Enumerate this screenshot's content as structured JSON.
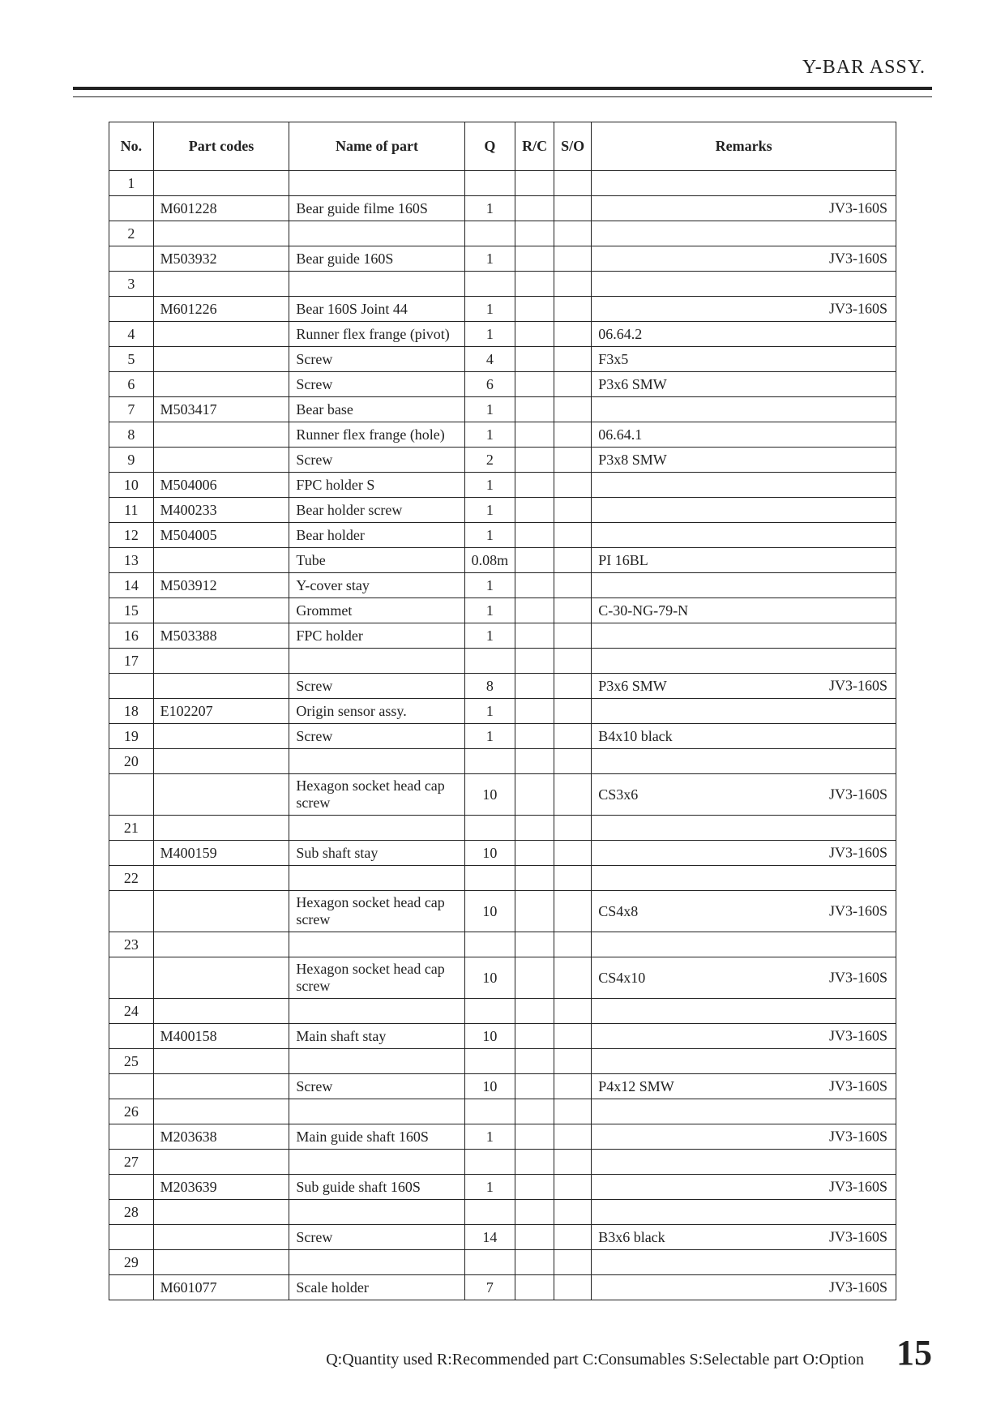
{
  "header": {
    "title": "Y-BAR  ASSY."
  },
  "columns": {
    "no": "No.",
    "code": "Part codes",
    "name": "Name of part",
    "q": "Q",
    "rc": "R/C",
    "so": "S/O",
    "remarks": "Remarks"
  },
  "rows": [
    {
      "no": "1",
      "code": "",
      "name": "",
      "q": "",
      "rc": "",
      "so": "",
      "rem_l": "",
      "rem_r": ""
    },
    {
      "no": "",
      "code": "M601228",
      "name": "Bear guide filme 160S",
      "q": "1",
      "rc": "",
      "so": "",
      "rem_l": "",
      "rem_r": "JV3-160S"
    },
    {
      "no": "2",
      "code": "",
      "name": "",
      "q": "",
      "rc": "",
      "so": "",
      "rem_l": "",
      "rem_r": ""
    },
    {
      "no": "",
      "code": "M503932",
      "name": "Bear guide 160S",
      "q": "1",
      "rc": "",
      "so": "",
      "rem_l": "",
      "rem_r": "JV3-160S"
    },
    {
      "no": "3",
      "code": "",
      "name": "",
      "q": "",
      "rc": "",
      "so": "",
      "rem_l": "",
      "rem_r": ""
    },
    {
      "no": "",
      "code": "M601226",
      "name": "Bear 160S Joint 44",
      "q": "1",
      "rc": "",
      "so": "",
      "rem_l": "",
      "rem_r": "JV3-160S"
    },
    {
      "no": "4",
      "code": "",
      "name": "Runner flex frange (pivot)",
      "q": "1",
      "rc": "",
      "so": "",
      "rem_l": "06.64.2",
      "rem_r": ""
    },
    {
      "no": "5",
      "code": "",
      "name": "Screw",
      "q": "4",
      "rc": "",
      "so": "",
      "rem_l": "F3x5",
      "rem_r": ""
    },
    {
      "no": "6",
      "code": "",
      "name": "Screw",
      "q": "6",
      "rc": "",
      "so": "",
      "rem_l": "P3x6 SMW",
      "rem_r": ""
    },
    {
      "no": "7",
      "code": "M503417",
      "name": "Bear base",
      "q": "1",
      "rc": "",
      "so": "",
      "rem_l": "",
      "rem_r": ""
    },
    {
      "no": "8",
      "code": "",
      "name": "Runner flex frange (hole)",
      "q": "1",
      "rc": "",
      "so": "",
      "rem_l": "06.64.1",
      "rem_r": ""
    },
    {
      "no": "9",
      "code": "",
      "name": "Screw",
      "q": "2",
      "rc": "",
      "so": "",
      "rem_l": "P3x8 SMW",
      "rem_r": ""
    },
    {
      "no": "10",
      "code": "M504006",
      "name": "FPC holder S",
      "q": "1",
      "rc": "",
      "so": "",
      "rem_l": "",
      "rem_r": ""
    },
    {
      "no": "11",
      "code": "M400233",
      "name": "Bear holder screw",
      "q": "1",
      "rc": "",
      "so": "",
      "rem_l": "",
      "rem_r": ""
    },
    {
      "no": "12",
      "code": "M504005",
      "name": "Bear holder",
      "q": "1",
      "rc": "",
      "so": "",
      "rem_l": "",
      "rem_r": ""
    },
    {
      "no": "13",
      "code": "",
      "name": "Tube",
      "q": "0.08m",
      "rc": "",
      "so": "",
      "rem_l": "PI 16BL",
      "rem_r": ""
    },
    {
      "no": "14",
      "code": "M503912",
      "name": "Y-cover stay",
      "q": "1",
      "rc": "",
      "so": "",
      "rem_l": "",
      "rem_r": ""
    },
    {
      "no": "15",
      "code": "",
      "name": "Grommet",
      "q": "1",
      "rc": "",
      "so": "",
      "rem_l": "C-30-NG-79-N",
      "rem_r": ""
    },
    {
      "no": "16",
      "code": "M503388",
      "name": "FPC holder",
      "q": "1",
      "rc": "",
      "so": "",
      "rem_l": "",
      "rem_r": ""
    },
    {
      "no": "17",
      "code": "",
      "name": "",
      "q": "",
      "rc": "",
      "so": "",
      "rem_l": "",
      "rem_r": ""
    },
    {
      "no": "",
      "code": "",
      "name": "Screw",
      "q": "8",
      "rc": "",
      "so": "",
      "rem_l": "P3x6 SMW",
      "rem_r": "JV3-160S"
    },
    {
      "no": "18",
      "code": "E102207",
      "name": "Origin sensor assy.",
      "q": "1",
      "rc": "",
      "so": "",
      "rem_l": "",
      "rem_r": ""
    },
    {
      "no": "19",
      "code": "",
      "name": "Screw",
      "q": "1",
      "rc": "",
      "so": "",
      "rem_l": "B4x10 black",
      "rem_r": ""
    },
    {
      "no": "20",
      "code": "",
      "name": "",
      "q": "",
      "rc": "",
      "so": "",
      "rem_l": "",
      "rem_r": ""
    },
    {
      "no": "",
      "code": "",
      "name": "Hexagon socket head cap screw",
      "q": "10",
      "rc": "",
      "so": "",
      "rem_l": "CS3x6",
      "rem_r": "JV3-160S"
    },
    {
      "no": "21",
      "code": "",
      "name": "",
      "q": "",
      "rc": "",
      "so": "",
      "rem_l": "",
      "rem_r": ""
    },
    {
      "no": "",
      "code": "M400159",
      "name": "Sub shaft stay",
      "q": "10",
      "rc": "",
      "so": "",
      "rem_l": "",
      "rem_r": "JV3-160S"
    },
    {
      "no": "22",
      "code": "",
      "name": "",
      "q": "",
      "rc": "",
      "so": "",
      "rem_l": "",
      "rem_r": ""
    },
    {
      "no": "",
      "code": "",
      "name": "Hexagon socket head cap screw",
      "q": "10",
      "rc": "",
      "so": "",
      "rem_l": "CS4x8",
      "rem_r": "JV3-160S"
    },
    {
      "no": "23",
      "code": "",
      "name": "",
      "q": "",
      "rc": "",
      "so": "",
      "rem_l": "",
      "rem_r": ""
    },
    {
      "no": "",
      "code": "",
      "name": "Hexagon socket head cap screw",
      "q": "10",
      "rc": "",
      "so": "",
      "rem_l": "CS4x10",
      "rem_r": "JV3-160S"
    },
    {
      "no": "24",
      "code": "",
      "name": "",
      "q": "",
      "rc": "",
      "so": "",
      "rem_l": "",
      "rem_r": ""
    },
    {
      "no": "",
      "code": "M400158",
      "name": "Main shaft stay",
      "q": "10",
      "rc": "",
      "so": "",
      "rem_l": "",
      "rem_r": "JV3-160S"
    },
    {
      "no": "25",
      "code": "",
      "name": "",
      "q": "",
      "rc": "",
      "so": "",
      "rem_l": "",
      "rem_r": ""
    },
    {
      "no": "",
      "code": "",
      "name": "Screw",
      "q": "10",
      "rc": "",
      "so": "",
      "rem_l": "P4x12 SMW",
      "rem_r": "JV3-160S"
    },
    {
      "no": "26",
      "code": "",
      "name": "",
      "q": "",
      "rc": "",
      "so": "",
      "rem_l": "",
      "rem_r": ""
    },
    {
      "no": "",
      "code": "M203638",
      "name": "Main guide shaft 160S",
      "q": "1",
      "rc": "",
      "so": "",
      "rem_l": "",
      "rem_r": "JV3-160S"
    },
    {
      "no": "27",
      "code": "",
      "name": "",
      "q": "",
      "rc": "",
      "so": "",
      "rem_l": "",
      "rem_r": ""
    },
    {
      "no": "",
      "code": "M203639",
      "name": "Sub guide shaft 160S",
      "q": "1",
      "rc": "",
      "so": "",
      "rem_l": "",
      "rem_r": "JV3-160S"
    },
    {
      "no": "28",
      "code": "",
      "name": "",
      "q": "",
      "rc": "",
      "so": "",
      "rem_l": "",
      "rem_r": ""
    },
    {
      "no": "",
      "code": "",
      "name": "Screw",
      "q": "14",
      "rc": "",
      "so": "",
      "rem_l": "B3x6 black",
      "rem_r": "JV3-160S"
    },
    {
      "no": "29",
      "code": "",
      "name": "",
      "q": "",
      "rc": "",
      "so": "",
      "rem_l": "",
      "rem_r": ""
    },
    {
      "no": "",
      "code": "M601077",
      "name": "Scale holder",
      "q": "7",
      "rc": "",
      "so": "",
      "rem_l": "",
      "rem_r": "JV3-160S"
    }
  ],
  "footer": {
    "legend": "Q:Quantity used   R:Recommended part   C:Consumables   S:Selectable part   O:Option",
    "page": "15"
  }
}
